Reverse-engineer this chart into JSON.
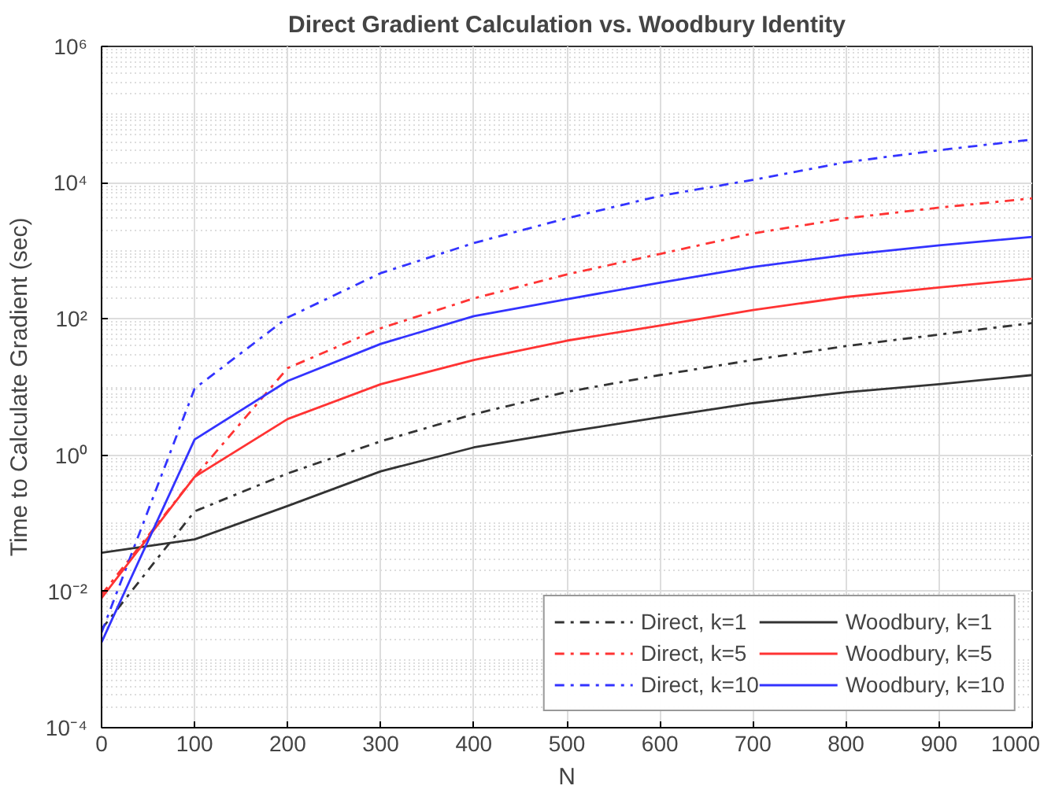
{
  "chart_data": {
    "type": "line",
    "title": "Direct Gradient Calculation vs. Woodbury Identity",
    "xlabel": "N",
    "ylabel": "Time to Calculate Gradient (sec)",
    "x": [
      0,
      100,
      200,
      300,
      400,
      500,
      600,
      700,
      800,
      900,
      1000
    ],
    "series": [
      {
        "name": "Direct, k=1",
        "color": "#333333",
        "line_style": "dashdot",
        "values": [
          0.0028,
          0.15,
          0.54,
          1.6,
          4,
          8.5,
          15,
          25,
          40,
          59,
          87
        ]
      },
      {
        "name": "Direct, k=5",
        "color": "#ff3333",
        "line_style": "dashdot",
        "values": [
          0.009,
          0.48,
          19,
          73,
          200,
          450,
          900,
          1800,
          3000,
          4300,
          5900
        ]
      },
      {
        "name": "Direct, k=10",
        "color": "#3333ff",
        "line_style": "dashdot",
        "values": [
          0.0025,
          9.5,
          105,
          470,
          1300,
          3000,
          6400,
          11000,
          20000,
          30000,
          43000
        ]
      },
      {
        "name": "Woodbury, k=1",
        "color": "#333333",
        "line_style": "solid",
        "values": [
          0.037,
          0.058,
          0.18,
          0.58,
          1.3,
          2.2,
          3.6,
          5.8,
          8.4,
          11,
          15
        ]
      },
      {
        "name": "Woodbury, k=5",
        "color": "#ff3333",
        "line_style": "solid",
        "values": [
          0.008,
          0.48,
          3.4,
          11,
          25,
          48,
          80,
          135,
          210,
          290,
          390
        ]
      },
      {
        "name": "Woodbury, k=10",
        "color": "#3333ff",
        "line_style": "solid",
        "values": [
          0.0018,
          1.7,
          12.3,
          43,
          110,
          195,
          340,
          580,
          870,
          1200,
          1600
        ]
      }
    ],
    "log": "y",
    "grid": true,
    "legend": "bottom right",
    "xlim": [
      0,
      1000
    ],
    "xticks": [
      0,
      100,
      200,
      300,
      400,
      500,
      600,
      700,
      800,
      900,
      1000
    ],
    "ylim": [
      0.0001,
      1000000
    ],
    "yticks": [
      {
        "value": 0.0001,
        "label": "10⁻⁴"
      },
      {
        "value": 0.01,
        "label": "10⁻²"
      },
      {
        "value": 1,
        "label": "10⁰"
      },
      {
        "value": 100,
        "label": "10²"
      },
      {
        "value": 10000,
        "label": "10⁴"
      },
      {
        "value": 1000000,
        "label": "10⁶"
      }
    ]
  }
}
